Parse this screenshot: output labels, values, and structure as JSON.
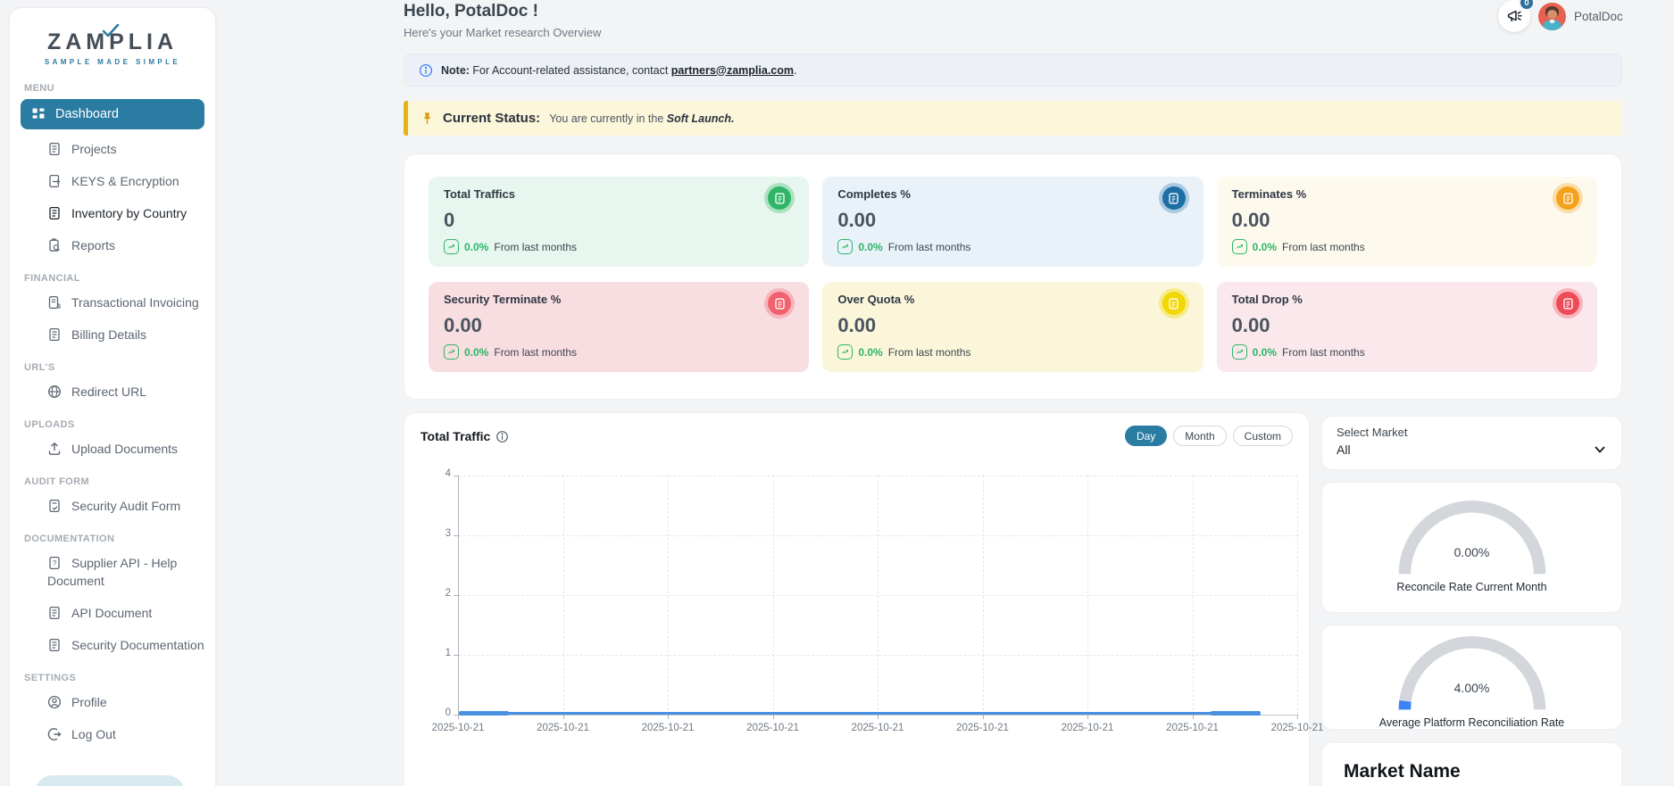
{
  "brand": {
    "name": "ZAMPLIA",
    "tagline": "SAMPLE MADE SIMPLE"
  },
  "sidebar": {
    "sections": [
      {
        "label": "MENU",
        "items": [
          {
            "label": "Dashboard",
            "icon": "dashboard-grid-icon",
            "active": true
          },
          {
            "label": "Projects",
            "icon": "document-lines-icon"
          },
          {
            "label": "KEYS & Encryption",
            "icon": "document-arrow-icon"
          },
          {
            "label": "Inventory by Country",
            "icon": "document-lines-icon",
            "emphasis": true
          },
          {
            "label": "Reports",
            "icon": "report-search-icon"
          }
        ]
      },
      {
        "label": "FINANCIAL",
        "items": [
          {
            "label": "Transactional Invoicing",
            "icon": "invoice-icon"
          },
          {
            "label": "Billing Details",
            "icon": "document-lines-icon"
          }
        ]
      },
      {
        "label": "URL'S",
        "items": [
          {
            "label": "Redirect URL",
            "icon": "globe-icon"
          }
        ]
      },
      {
        "label": "UPLOADS",
        "items": [
          {
            "label": "Upload Documents",
            "icon": "upload-icon"
          }
        ]
      },
      {
        "label": "AUDIT FORM",
        "items": [
          {
            "label": "Security Audit Form",
            "icon": "document-check-icon"
          }
        ]
      },
      {
        "label": "DOCUMENTATION",
        "items": [
          {
            "label": "Supplier API - Help Document",
            "icon": "document-question-icon"
          },
          {
            "label": "API Document",
            "icon": "document-lines-icon"
          },
          {
            "label": "Security Documentation",
            "icon": "document-lines-icon"
          }
        ]
      },
      {
        "label": "SETTINGS",
        "items": [
          {
            "label": "Profile",
            "icon": "profile-icon"
          },
          {
            "label": "Log Out",
            "icon": "logout-icon"
          }
        ]
      }
    ]
  },
  "header": {
    "greeting": "Hello, PotalDoc !",
    "subtitle": "Here's your Market research Overview",
    "notification_count": "0",
    "username": "PotalDoc"
  },
  "note": {
    "label": "Note:",
    "text": " For Account-related assistance, contact ",
    "email": "partners@zamplia.com",
    "suffix": "."
  },
  "status": {
    "label": "Current Status:",
    "text": "You are currently in the ",
    "highlight": "Soft Launch",
    "suffix": "."
  },
  "stats_cards": [
    {
      "title": "Total Traffics",
      "value": "0",
      "change": "0.0%",
      "change_caption": "From last months",
      "bg": "#e7f6ee",
      "icon": "form-icon",
      "icon_color": "#2eb567",
      "ring": "rgba(46,181,103,0.32)"
    },
    {
      "title": "Completes %",
      "value": "0.00",
      "change": "0.0%",
      "change_caption": "From last months",
      "bg": "#e9f2f9",
      "icon": "form-icon",
      "icon_color": "#1c6ea4",
      "ring": "rgba(28,110,164,0.30)"
    },
    {
      "title": "Terminates %",
      "value": "0.00",
      "change": "0.0%",
      "change_caption": "From last months",
      "bg": "#fdf9ed",
      "icon": "form-icon",
      "icon_color": "#f5a11c",
      "ring": "rgba(245,161,28,0.32)"
    },
    {
      "title": "Security Terminate %",
      "value": "0.00",
      "change": "0.0%",
      "change_caption": "From last months",
      "bg": "#f8dde1",
      "icon": "form-icon",
      "icon_color": "#f2616e",
      "ring": "rgba(242,97,110,0.32)"
    },
    {
      "title": "Over Quota %",
      "value": "0.00",
      "change": "0.0%",
      "change_caption": "From last months",
      "bg": "#fbf6da",
      "icon": "form-icon",
      "icon_color": "#f2d703",
      "ring": "rgba(242,215,3,0.38)"
    },
    {
      "title": "Total Drop %",
      "value": "0.00",
      "change": "0.0%",
      "change_caption": "From last months",
      "bg": "#fae8ec",
      "icon": "form-icon",
      "icon_color": "#ef4b57",
      "ring": "rgba(239,75,87,0.32)"
    }
  ],
  "traffic_chart": {
    "title": "Total Traffic",
    "range_buttons": [
      "Day",
      "Month",
      "Custom"
    ],
    "active_button": "Day",
    "chart_data": {
      "type": "line",
      "x": [
        "2025-10-21",
        "2025-10-21",
        "2025-10-21",
        "2025-10-21",
        "2025-10-21",
        "2025-10-21",
        "2025-10-21",
        "2025-10-21",
        "2025-10-21"
      ],
      "series": [
        {
          "name": "Total Traffic",
          "values": [
            0,
            0,
            0,
            0,
            0,
            0,
            0,
            0,
            0
          ]
        }
      ],
      "y_ticks": [
        0,
        1,
        2,
        3,
        4
      ],
      "ylim": [
        0,
        4
      ],
      "grid": true,
      "line_color": "#4a90e2"
    }
  },
  "market_select": {
    "label": "Select Market",
    "value": "All"
  },
  "gauges": [
    {
      "value_label": "0.00%",
      "percent": 0,
      "label": "Reconcile Rate Current Month"
    },
    {
      "value_label": "4.00%",
      "percent": 4,
      "label": "Average Platform Reconciliation Rate"
    }
  ],
  "market_name": {
    "title": "Market Name"
  },
  "colors": {
    "accent": "#2b7ca3",
    "note_bg": "#edf1f7",
    "status_bg": "#fcf6da",
    "status_border": "#e7b416",
    "chart_line": "#4a90e2",
    "gauge_track": "#d3d6da",
    "gauge_fill": "#3b82f6",
    "positive": "#2eb567"
  }
}
